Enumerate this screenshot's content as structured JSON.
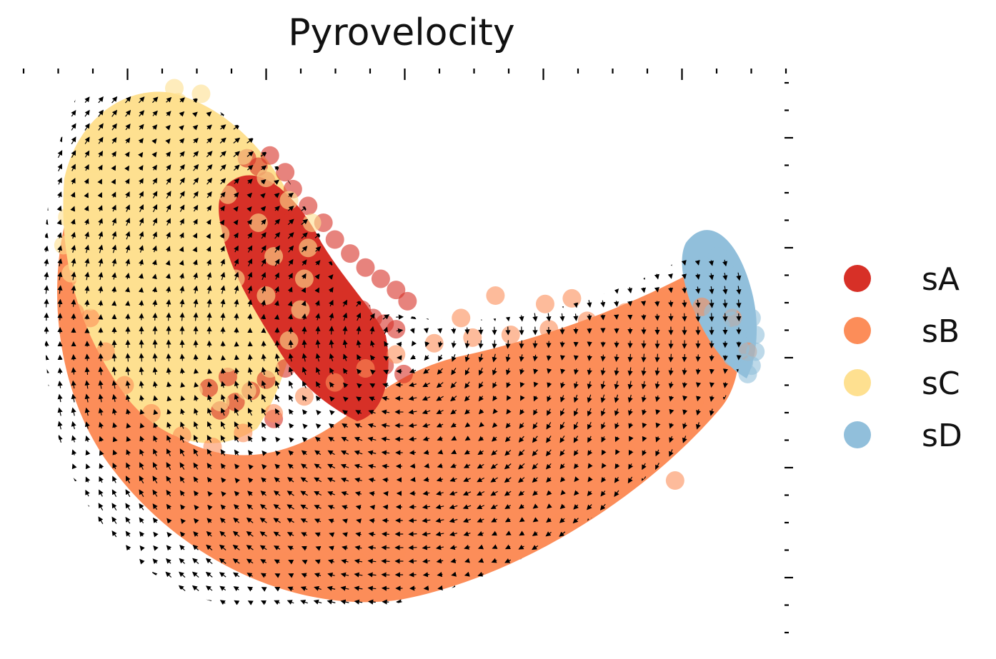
{
  "chart_data": {
    "type": "scatter",
    "title": "Pyrovelocity",
    "xlabel": "",
    "ylabel": "",
    "grid": false,
    "legend_position": "right",
    "quiver": true,
    "quiver_sampling": "embedding grid",
    "xlim": [
      0,
      10
    ],
    "ylim": [
      0,
      10
    ],
    "series": [
      {
        "name": "sA",
        "color": "#d73027",
        "points": [
          [
            2.95,
            8.45
          ],
          [
            3.1,
            8.3
          ],
          [
            3.2,
            8.05
          ],
          [
            3.3,
            7.8
          ],
          [
            3.4,
            7.55
          ],
          [
            3.5,
            7.3
          ],
          [
            3.6,
            7.05
          ],
          [
            3.7,
            6.85
          ],
          [
            3.8,
            6.6
          ],
          [
            3.9,
            6.4
          ],
          [
            4.0,
            6.2
          ],
          [
            4.15,
            6.05
          ],
          [
            4.3,
            5.9
          ],
          [
            4.45,
            5.75
          ],
          [
            4.6,
            5.6
          ],
          [
            4.75,
            5.5
          ],
          [
            4.9,
            5.4
          ],
          [
            3.25,
            8.5
          ],
          [
            3.45,
            8.2
          ],
          [
            3.55,
            7.9
          ],
          [
            3.75,
            7.6
          ],
          [
            3.95,
            7.3
          ],
          [
            4.1,
            7.0
          ],
          [
            4.3,
            6.75
          ],
          [
            4.5,
            6.5
          ],
          [
            4.7,
            6.3
          ],
          [
            4.9,
            6.1
          ],
          [
            5.05,
            5.9
          ],
          [
            3.9,
            5.5
          ],
          [
            3.75,
            5.2
          ],
          [
            3.6,
            4.95
          ],
          [
            3.45,
            4.7
          ],
          [
            3.2,
            4.5
          ],
          [
            3.0,
            4.3
          ],
          [
            2.8,
            4.1
          ],
          [
            2.6,
            3.95
          ],
          [
            4.1,
            5.3
          ],
          [
            4.3,
            5.1
          ],
          [
            4.5,
            4.9
          ],
          [
            4.75,
            4.75
          ],
          [
            5.0,
            4.6
          ],
          [
            3.3,
            3.8
          ],
          [
            2.7,
            4.55
          ],
          [
            2.45,
            4.35
          ],
          [
            3.05,
            7.1
          ],
          [
            3.35,
            6.6
          ]
        ]
      },
      {
        "name": "sB",
        "color": "#fc8d59",
        "points": [
          [
            0.6,
            6.3
          ],
          [
            0.7,
            5.7
          ],
          [
            0.8,
            5.1
          ],
          [
            0.95,
            4.5
          ],
          [
            1.1,
            3.9
          ],
          [
            1.3,
            3.3
          ],
          [
            1.55,
            2.8
          ],
          [
            1.85,
            2.35
          ],
          [
            2.2,
            1.95
          ],
          [
            2.6,
            1.65
          ],
          [
            3.0,
            1.4
          ],
          [
            3.45,
            1.25
          ],
          [
            3.9,
            1.2
          ],
          [
            4.4,
            1.25
          ],
          [
            4.9,
            1.4
          ],
          [
            5.4,
            1.6
          ],
          [
            5.9,
            1.85
          ],
          [
            6.4,
            2.15
          ],
          [
            6.9,
            2.5
          ],
          [
            7.4,
            2.85
          ],
          [
            7.9,
            3.25
          ],
          [
            8.35,
            3.65
          ],
          [
            8.8,
            4.1
          ],
          [
            9.2,
            4.55
          ],
          [
            9.5,
            5.0
          ],
          [
            9.3,
            5.6
          ],
          [
            8.9,
            5.8
          ],
          [
            8.4,
            5.9
          ],
          [
            7.9,
            5.7
          ],
          [
            7.4,
            5.55
          ],
          [
            6.9,
            5.4
          ],
          [
            6.4,
            5.3
          ],
          [
            5.9,
            5.25
          ],
          [
            5.4,
            5.15
          ],
          [
            4.9,
            4.95
          ],
          [
            4.5,
            4.7
          ],
          [
            4.1,
            4.45
          ],
          [
            3.7,
            4.2
          ],
          [
            3.3,
            3.9
          ],
          [
            2.9,
            3.55
          ],
          [
            2.5,
            3.3
          ],
          [
            2.1,
            3.5
          ],
          [
            1.7,
            3.9
          ],
          [
            1.35,
            4.4
          ],
          [
            1.1,
            5.0
          ],
          [
            0.9,
            5.6
          ],
          [
            2.3,
            2.6
          ],
          [
            3.0,
            2.3
          ],
          [
            3.8,
            2.1
          ],
          [
            4.6,
            2.2
          ],
          [
            5.4,
            2.5
          ],
          [
            6.2,
            2.9
          ],
          [
            7.0,
            3.4
          ],
          [
            7.8,
            3.9
          ],
          [
            8.5,
            4.5
          ],
          [
            3.5,
            3.0
          ],
          [
            4.3,
            3.2
          ],
          [
            5.1,
            3.5
          ],
          [
            5.9,
            3.9
          ],
          [
            6.7,
            4.3
          ],
          [
            7.5,
            4.7
          ],
          [
            8.3,
            5.1
          ],
          [
            2.8,
            2.9
          ],
          [
            4.0,
            1.6
          ],
          [
            6.0,
            3.2
          ],
          [
            6.2,
            6.0
          ],
          [
            6.85,
            5.85
          ],
          [
            7.2,
            5.95
          ],
          [
            5.75,
            5.6
          ],
          [
            5.45,
            3.3
          ],
          [
            6.25,
            1.35
          ],
          [
            8.55,
            2.7
          ],
          [
            7.05,
            1.95
          ]
        ]
      },
      {
        "name": "sC",
        "color": "#fee090",
        "points": [
          [
            1.8,
            9.35
          ],
          [
            1.5,
            9.1
          ],
          [
            1.2,
            8.75
          ],
          [
            0.95,
            8.35
          ],
          [
            0.75,
            7.9
          ],
          [
            0.6,
            7.4
          ],
          [
            0.55,
            6.9
          ],
          [
            0.65,
            6.4
          ],
          [
            0.9,
            5.9
          ],
          [
            1.2,
            5.45
          ],
          [
            1.55,
            5.0
          ],
          [
            1.9,
            4.6
          ],
          [
            2.25,
            4.3
          ],
          [
            2.6,
            4.1
          ],
          [
            2.95,
            4.3
          ],
          [
            3.25,
            4.7
          ],
          [
            3.5,
            5.2
          ],
          [
            3.65,
            5.75
          ],
          [
            3.7,
            6.3
          ],
          [
            3.75,
            6.85
          ],
          [
            3.8,
            7.3
          ],
          [
            3.5,
            7.7
          ],
          [
            3.2,
            8.1
          ],
          [
            2.9,
            8.5
          ],
          [
            2.6,
            8.9
          ],
          [
            2.3,
            9.2
          ],
          [
            2.05,
            9.45
          ],
          [
            1.5,
            8.4
          ],
          [
            1.3,
            7.8
          ],
          [
            1.1,
            7.1
          ],
          [
            1.2,
            6.4
          ],
          [
            1.5,
            5.8
          ],
          [
            1.9,
            5.3
          ],
          [
            2.3,
            4.9
          ],
          [
            2.7,
            4.8
          ],
          [
            3.0,
            5.3
          ],
          [
            3.2,
            6.0
          ],
          [
            3.3,
            6.7
          ],
          [
            3.1,
            7.3
          ],
          [
            2.7,
            7.8
          ],
          [
            2.3,
            8.3
          ],
          [
            1.9,
            8.7
          ],
          [
            1.8,
            7.6
          ],
          [
            1.7,
            6.8
          ],
          [
            2.0,
            6.1
          ],
          [
            2.5,
            5.6
          ],
          [
            2.8,
            6.3
          ],
          [
            2.6,
            7.1
          ],
          [
            2.2,
            7.3
          ],
          [
            2.35,
            6.5
          ],
          [
            2.0,
            9.7
          ],
          [
            2.35,
            9.6
          ]
        ]
      },
      {
        "name": "sD",
        "color": "#91bfdb",
        "points": [
          [
            8.95,
            6.4
          ],
          [
            9.05,
            6.2
          ],
          [
            9.15,
            6.0
          ],
          [
            9.25,
            5.8
          ],
          [
            9.3,
            5.55
          ],
          [
            9.35,
            5.3
          ],
          [
            9.4,
            5.05
          ],
          [
            9.45,
            4.8
          ],
          [
            9.5,
            4.6
          ],
          [
            9.2,
            6.45
          ],
          [
            9.35,
            6.2
          ],
          [
            9.45,
            5.9
          ],
          [
            9.55,
            5.6
          ],
          [
            9.6,
            5.3
          ],
          [
            9.6,
            5.0
          ],
          [
            9.55,
            4.75
          ],
          [
            9.05,
            5.7
          ],
          [
            9.15,
            5.45
          ],
          [
            9.1,
            6.7
          ],
          [
            9.25,
            6.65
          ],
          [
            9.0,
            6.55
          ],
          [
            9.3,
            4.9
          ],
          [
            9.2,
            5.15
          ]
        ]
      }
    ]
  }
}
